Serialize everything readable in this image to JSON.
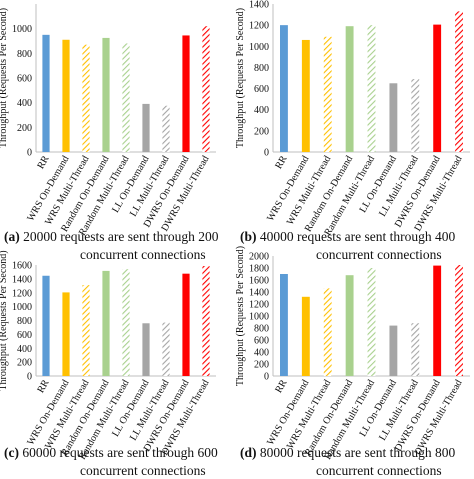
{
  "colors": {
    "RR": "#5b9bd5",
    "WRS": "#ffc000",
    "Random": "#a9d18e",
    "LL": "#a5a5a5",
    "DWRS": "#ff0000",
    "axis": "#bfbfbf",
    "text": "#111111"
  },
  "chart_data": [
    {
      "type": "bar",
      "caption_label": "(a)",
      "caption_line1": "20000 requests are sent through 200",
      "caption_line2": "concurrent connections",
      "ylabel": "Throughput (Requests Per Second)",
      "ylim": [
        0,
        1200
      ],
      "yticks": [
        "0",
        "200",
        "400",
        "600",
        "800",
        "1000"
      ],
      "categories": [
        "RR",
        "WRS On-Demand",
        "WRS Multi-Thread",
        "Random On-Demand",
        "Random Multi-Thread",
        "LL On-Demand",
        "LL Multi-Thread",
        "DWRS On-Demand",
        "DWRS Multi-Thread"
      ],
      "values": [
        950,
        910,
        870,
        925,
        880,
        390,
        375,
        945,
        1020
      ]
    },
    {
      "type": "bar",
      "caption_label": "(b)",
      "caption_line1": "40000 requests are sent through 400",
      "caption_line2": "concurrent connections",
      "ylabel": "Throughput (Requests Per Second)",
      "ylim": [
        0,
        1400
      ],
      "yticks": [
        "0",
        "200",
        "400",
        "600",
        "800",
        "1000",
        "1200",
        "1400"
      ],
      "categories": [
        "RR",
        "WRS On-Demand",
        "WRS Multi-Thread",
        "Random On-Demand",
        "Random Multi-Thread",
        "LL On-Demand",
        "LL Multi-Thread",
        "DWRS On-Demand",
        "DWRS Multi-Thread"
      ],
      "values": [
        1200,
        1060,
        1090,
        1190,
        1200,
        650,
        690,
        1205,
        1330
      ]
    },
    {
      "type": "bar",
      "caption_label": "(c)",
      "caption_line1": "60000 requests are sent through 600",
      "caption_line2": "concurrent connections",
      "ylabel": "Throughput (Requests Per Second)",
      "ylim": [
        0,
        1600
      ],
      "yticks": [
        "0",
        "200",
        "400",
        "600",
        "800",
        "1000",
        "1200",
        "1400",
        "1600"
      ],
      "categories": [
        "RR",
        "WRS On-Demand",
        "WRS Multi-Thread",
        "Random On-Demand",
        "Random Multi-Thread",
        "LL On-Demand",
        "LL Multi-Thread",
        "DWRS On-Demand",
        "DWRS Multi-Thread"
      ],
      "values": [
        1445,
        1205,
        1310,
        1515,
        1540,
        760,
        770,
        1475,
        1585
      ]
    },
    {
      "type": "bar",
      "caption_label": "(d)",
      "caption_line1": "80000 requests are sent through 800",
      "caption_line2": "concurrent connections",
      "ylabel": "Throughput (Requests Per Second)",
      "ylim": [
        0,
        2000
      ],
      "yticks": [
        "0",
        "200",
        "400",
        "600",
        "800",
        "1000",
        "1200",
        "1400",
        "1600",
        "1800",
        "2000"
      ],
      "categories": [
        "RR",
        "WRS On-Demand",
        "WRS Multi-Thread",
        "Random On-Demand",
        "Random Multi-Thread",
        "LL On-Demand",
        "LL Multi-Thread",
        "DWRS On-Demand",
        "DWRS Multi-Thread"
      ],
      "values": [
        1700,
        1320,
        1460,
        1680,
        1800,
        840,
        880,
        1840,
        1850
      ]
    }
  ]
}
